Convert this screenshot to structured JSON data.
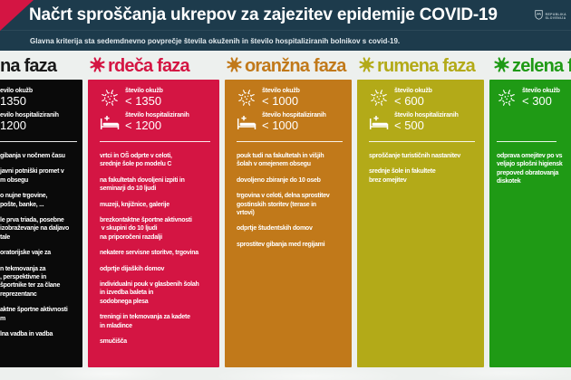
{
  "header": {
    "title": "Načrt sproščanja ukrepov za zajezitev epidemije COVID-19",
    "subtitle": "Glavna kriterija sta sedemdnevno povprečje števila okuženih in število hospitaliziranih bolnikov s covid-19.",
    "logo": {
      "line1": "REPUBLIKA",
      "line2": "SLOVENIJA"
    },
    "bar_color": "#1d3b4c",
    "accent_color": "#d41543"
  },
  "phases": [
    {
      "id": "crna",
      "title": "na faza",
      "color": "#0a0a0a",
      "title_color": "#181818",
      "criteria": [
        {
          "icon": "virus",
          "label": "evilo okužb",
          "value": "1350"
        },
        {
          "icon": "bed",
          "label": "evilo hospitaliziranih",
          "value": "1200"
        }
      ],
      "measures": [
        [
          "gibanja v nočnem času"
        ],
        [
          "javni potniški promet v",
          "m obsegu"
        ],
        [
          "o nujne trgovine,",
          "pošte, banke, ..."
        ],
        [
          "le prva triada, posebne",
          "izobraževanje na daljavo",
          "tale"
        ],
        [
          "oratorijske vaje za"
        ],
        [
          "n tekmovanja za",
          ", perspektivne in",
          "športnike ter za člane",
          "reprezentanc"
        ],
        [
          "aktne športne aktivnosti",
          "m"
        ],
        [
          "lna vadba in vadba"
        ]
      ]
    },
    {
      "id": "rdeca",
      "title": "rdeča faza",
      "color": "#d41543",
      "title_color": "#d41543",
      "criteria": [
        {
          "icon": "virus",
          "label": "število okužb",
          "value": "< 1350"
        },
        {
          "icon": "bed",
          "label": "število hospitaliziranih",
          "value": "< 1200"
        }
      ],
      "measures": [
        [
          "vrtci in OŠ odprte v celoti,",
          "srednje šole po modelu C"
        ],
        [
          "na fakultetah dovoljeni izpiti in",
          "seminarji do 10 ljudi"
        ],
        [
          "muzeji, knjižnice, galerije"
        ],
        [
          "brezkontaktne športne aktivnosti",
          " v skupini do 10 ljudi",
          "na priporočeni razdalji"
        ],
        [
          "nekatere servisne storitve, trgovina"
        ],
        [
          "odprtje dijaških domov"
        ],
        [
          "individualni pouk v glasbenih šolah",
          "in izvedba baleta in",
          "sodobnega plesa"
        ],
        [
          "treningi in tekmovanja za kadete",
          "in mladince"
        ],
        [
          "smučišča"
        ]
      ]
    },
    {
      "id": "oranzna",
      "title": "oranžna faza",
      "color": "#c1791a",
      "title_color": "#c1791a",
      "criteria": [
        {
          "icon": "virus",
          "label": "število okužb",
          "value": "< 1000"
        },
        {
          "icon": "bed",
          "label": "število hospitaliziranih",
          "value": "< 1000"
        }
      ],
      "measures": [
        [
          "pouk tudi na fakultetah in višjih",
          "šolah v omejenem obsegu"
        ],
        [
          "dovoljeno zbiranje do 10 oseb"
        ],
        [
          "trgovina v celoti, delna sprostitev",
          "gostinskih storitev (terase in",
          "vrtovi)"
        ],
        [
          "odprtje študentskih domov"
        ],
        [
          "sprostitev gibanja med regijami"
        ]
      ]
    },
    {
      "id": "rumena",
      "title": "rumena faza",
      "color": "#b3aa18",
      "title_color": "#b3aa18",
      "criteria": [
        {
          "icon": "virus",
          "label": "število okužb",
          "value": "< 600"
        },
        {
          "icon": "bed",
          "label": "število hospitaliziranih",
          "value": "< 500"
        }
      ],
      "measures": [
        [
          "sproščanje turističnih nastanitev"
        ],
        [
          "srednje šole in fakultete",
          "brez omejitev"
        ]
      ]
    },
    {
      "id": "zelena",
      "title": "zelena faza",
      "color": "#1f9a15",
      "title_color": "#1f9a15",
      "criteria": [
        {
          "icon": "virus",
          "label": "število okužb",
          "value": "< 300"
        }
      ],
      "measures": [
        [
          "odprava omejitev po vs",
          "veljajo splošni higiensk",
          "prepoved obratovanja",
          "diskotek"
        ]
      ]
    }
  ]
}
